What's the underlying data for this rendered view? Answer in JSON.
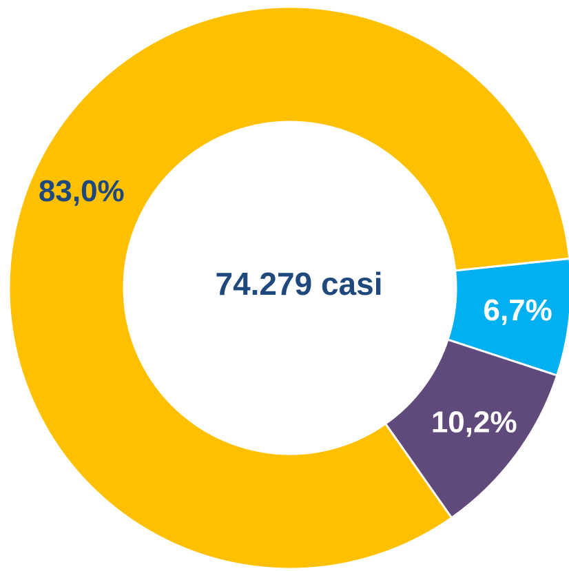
{
  "chart_data": {
    "type": "donut",
    "center_label": "74.279 casi",
    "categories": [
      null,
      null,
      null
    ],
    "series": [
      {
        "values": [
          6.7,
          10.2,
          83.0
        ],
        "value_labels": [
          "6,7%",
          "10,2%",
          "83,0%"
        ],
        "colors": [
          "#00B0F0",
          "#604A7B",
          "#FFC000"
        ],
        "label_colors": [
          "#FFFFFF",
          "#FFFFFF",
          "#1F497D"
        ]
      }
    ]
  }
}
